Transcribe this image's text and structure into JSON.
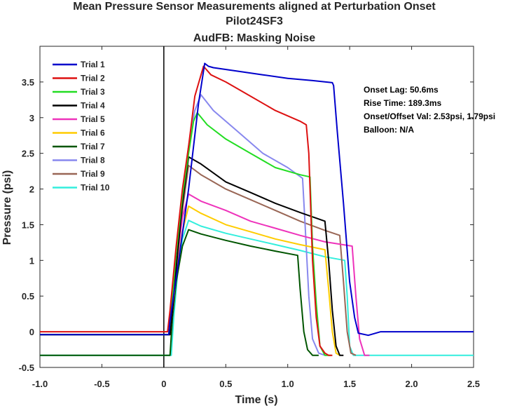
{
  "chart_data": {
    "type": "line",
    "title": [
      "Mean Pressure Sensor Measurements aligned at Perturbation Onset",
      "Pilot24SF3",
      "AudFB: Masking Noise"
    ],
    "xlabel": "Time (s)",
    "ylabel": "Pressure (psi)",
    "xlim": [
      -1.0,
      2.5
    ],
    "ylim": [
      -0.5,
      4.0
    ],
    "xticks": [
      -1.0,
      -0.5,
      0,
      0.5,
      1.0,
      1.5,
      2.0,
      2.5
    ],
    "xtick_labels": [
      "-1.0",
      "-0.5",
      "0",
      "0.5",
      "1.0",
      "1.5",
      "2.0",
      "2.5"
    ],
    "yticks": [
      -0.5,
      0,
      0.5,
      1,
      1.5,
      2,
      2.5,
      3,
      3.5
    ],
    "ytick_labels": [
      "-0.5",
      "0",
      "0.5",
      "1",
      "1.5",
      "2",
      "2.5",
      "3",
      "3.5"
    ],
    "grid": false,
    "legend_position": "top-left",
    "onset_line_x": 0,
    "annotations": [
      "Onset Lag: 50.6ms",
      "Rise Time: 189.3ms",
      "Onset/Offset Val: 2.53psi, 1.79psi",
      "Balloon: N/A"
    ],
    "series": [
      {
        "name": "Trial 1",
        "color": "#0000cc",
        "x": [
          -1.0,
          0.04,
          0.05,
          0.12,
          0.2,
          0.28,
          0.33,
          0.36,
          0.4,
          0.6,
          0.8,
          1.0,
          1.2,
          1.36,
          1.37,
          1.4,
          1.45,
          1.5,
          1.54,
          1.57,
          1.65,
          1.75,
          2.0,
          2.5
        ],
        "y": [
          -0.04,
          -0.04,
          0.15,
          1.0,
          2.0,
          3.2,
          3.76,
          3.72,
          3.7,
          3.65,
          3.6,
          3.55,
          3.52,
          3.49,
          3.45,
          2.8,
          1.8,
          0.7,
          0.2,
          -0.02,
          -0.05,
          0.0,
          0.0,
          0.0
        ]
      },
      {
        "name": "Trial 2",
        "color": "#dd1111",
        "x": [
          -1.0,
          0.03,
          0.05,
          0.1,
          0.15,
          0.2,
          0.25,
          0.32,
          0.38,
          0.5,
          0.7,
          0.9,
          1.1,
          1.15,
          1.17,
          1.2,
          1.23,
          1.26,
          1.3,
          1.33,
          1.36
        ],
        "y": [
          0.0,
          0.0,
          0.3,
          1.2,
          2.0,
          2.6,
          3.3,
          3.72,
          3.6,
          3.5,
          3.3,
          3.1,
          2.95,
          2.9,
          2.5,
          1.0,
          0.2,
          -0.2,
          -0.3,
          -0.33,
          -0.33
        ]
      },
      {
        "name": "Trial 3",
        "color": "#22dd22",
        "x": [
          -1.0,
          0.04,
          0.06,
          0.1,
          0.15,
          0.2,
          0.24,
          0.27,
          0.35,
          0.5,
          0.7,
          0.9,
          1.1,
          1.18,
          1.2,
          1.23,
          1.26,
          1.3,
          1.35
        ],
        "y": [
          -0.04,
          -0.04,
          0.3,
          1.1,
          1.9,
          2.5,
          2.95,
          3.07,
          2.9,
          2.7,
          2.5,
          2.3,
          2.2,
          2.17,
          1.2,
          0.4,
          -0.2,
          -0.33,
          -0.33
        ]
      },
      {
        "name": "Trial 4",
        "color": "#000000",
        "x": [
          -1.0,
          0.05,
          0.07,
          0.1,
          0.15,
          0.2,
          0.3,
          0.5,
          0.7,
          0.9,
          1.1,
          1.3,
          1.33,
          1.36,
          1.39,
          1.42,
          1.45
        ],
        "y": [
          -0.04,
          -0.04,
          0.3,
          0.9,
          1.8,
          2.45,
          2.35,
          2.1,
          1.95,
          1.8,
          1.67,
          1.55,
          1.0,
          0.3,
          -0.2,
          -0.33,
          -0.33
        ]
      },
      {
        "name": "Trial 5",
        "color": "#ee33bb",
        "x": [
          -1.0,
          0.05,
          0.07,
          0.1,
          0.15,
          0.2,
          0.3,
          0.5,
          0.7,
          0.9,
          1.1,
          1.3,
          1.52,
          1.55,
          1.58,
          1.62,
          1.66
        ],
        "y": [
          -0.04,
          -0.04,
          0.3,
          0.9,
          1.6,
          1.93,
          1.83,
          1.7,
          1.55,
          1.45,
          1.35,
          1.26,
          1.2,
          0.5,
          -0.1,
          -0.33,
          -0.33
        ]
      },
      {
        "name": "Trial 6",
        "color": "#ffcc00",
        "x": [
          -1.0,
          0.05,
          0.07,
          0.1,
          0.15,
          0.2,
          0.3,
          0.5,
          0.7,
          0.9,
          1.1,
          1.3,
          1.33,
          1.36,
          1.39,
          1.42
        ],
        "y": [
          -0.04,
          -0.04,
          0.3,
          0.8,
          1.4,
          1.76,
          1.66,
          1.5,
          1.4,
          1.3,
          1.22,
          1.15,
          0.6,
          0.0,
          -0.3,
          -0.33
        ]
      },
      {
        "name": "Trial 7",
        "color": "#005500",
        "x": [
          -1.0,
          0.05,
          0.07,
          0.1,
          0.15,
          0.2,
          0.3,
          0.5,
          0.7,
          0.9,
          1.08,
          1.1,
          1.13,
          1.16,
          1.2,
          1.25
        ],
        "y": [
          -0.33,
          -0.33,
          0.2,
          0.7,
          1.2,
          1.43,
          1.37,
          1.28,
          1.2,
          1.13,
          1.07,
          0.6,
          0.0,
          -0.25,
          -0.33,
          -0.33
        ]
      },
      {
        "name": "Trial 8",
        "color": "#8888ee",
        "x": [
          -1.0,
          0.04,
          0.06,
          0.1,
          0.15,
          0.2,
          0.25,
          0.3,
          0.4,
          0.6,
          0.8,
          1.0,
          1.12,
          1.14,
          1.17,
          1.2,
          1.25,
          1.3
        ],
        "y": [
          -0.04,
          -0.04,
          0.3,
          1.1,
          1.9,
          2.6,
          3.1,
          3.32,
          3.1,
          2.8,
          2.5,
          2.3,
          2.15,
          1.5,
          0.5,
          -0.1,
          -0.3,
          -0.33
        ]
      },
      {
        "name": "Trial 9",
        "color": "#996655",
        "x": [
          -1.0,
          0.05,
          0.07,
          0.1,
          0.15,
          0.2,
          0.3,
          0.5,
          0.7,
          0.9,
          1.1,
          1.3,
          1.42,
          1.45,
          1.48,
          1.51,
          1.55
        ],
        "y": [
          -0.04,
          -0.04,
          0.3,
          0.9,
          1.7,
          2.33,
          2.2,
          2.0,
          1.85,
          1.7,
          1.55,
          1.42,
          1.35,
          0.7,
          0.0,
          -0.3,
          -0.33
        ]
      },
      {
        "name": "Trial 10",
        "color": "#33eedd",
        "x": [
          -1.0,
          0.06,
          0.08,
          0.11,
          0.15,
          0.2,
          0.3,
          0.5,
          0.7,
          0.9,
          1.1,
          1.3,
          1.46,
          1.48,
          1.5,
          1.53,
          2.5
        ],
        "y": [
          -0.33,
          -0.33,
          0.2,
          0.8,
          1.3,
          1.56,
          1.48,
          1.38,
          1.3,
          1.22,
          1.14,
          1.05,
          1.0,
          0.5,
          -0.2,
          -0.33,
          -0.33
        ]
      }
    ]
  }
}
